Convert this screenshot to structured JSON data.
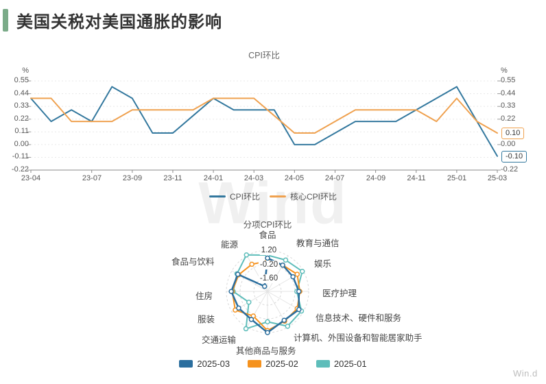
{
  "header": {
    "title": "美国关税对美国通胀的影响",
    "accent_color": "#7bab89"
  },
  "watermark": {
    "large": "Wind",
    "small": "Win.d"
  },
  "line_chart": {
    "title": "CPI环比",
    "unit_left": "%",
    "unit_right": "%",
    "left_ticks": [
      "0.55",
      "0.44",
      "0.33",
      "0.22",
      "0.11",
      "0.00",
      "-0.11",
      "-0.22"
    ],
    "right_ticks": [
      "0.55",
      "0.44",
      "0.33",
      "0.22",
      "0.00",
      "-0.22"
    ],
    "x_ticks": [
      "23-04",
      "23-07",
      "23-09",
      "23-11",
      "24-01",
      "24-03",
      "24-05",
      "24-07",
      "24-09",
      "24-11",
      "25-01",
      "25-03"
    ],
    "end_labels": [
      {
        "text": "0.10",
        "value": 0.1,
        "color": "#efa14f"
      },
      {
        "text": "-0.10",
        "value": -0.1,
        "color": "#33789e"
      }
    ],
    "legend": [
      {
        "label": "CPI环比",
        "color": "#33789e"
      },
      {
        "label": "核心CPI环比",
        "color": "#efa14f"
      }
    ]
  },
  "radar_chart": {
    "title": "分项CPI环比",
    "ring_labels": [
      "1.20",
      "-0.20",
      "-1.60"
    ],
    "legend": [
      {
        "label": "2025-03",
        "color": "#2b6e9e"
      },
      {
        "label": "2025-02",
        "color": "#f5921e"
      },
      {
        "label": "2025-01",
        "color": "#5ebdba"
      }
    ]
  },
  "chart_data": [
    {
      "type": "line",
      "title": "CPI环比",
      "ylabel": "%",
      "ylim": [
        -0.22,
        0.55
      ],
      "y_ticks": [
        0.55,
        0.44,
        0.33,
        0.22,
        0.11,
        0.0,
        -0.11,
        -0.22
      ],
      "grid": true,
      "legend_position": "bottom",
      "x": [
        "2023-04",
        "2023-05",
        "2023-06",
        "2023-07",
        "2023-08",
        "2023-09",
        "2023-10",
        "2023-11",
        "2023-12",
        "2024-01",
        "2024-02",
        "2024-03",
        "2024-04",
        "2024-05",
        "2024-06",
        "2024-07",
        "2024-08",
        "2024-09",
        "2024-10",
        "2024-11",
        "2024-12",
        "2025-01",
        "2025-02",
        "2025-03"
      ],
      "x_tick_labels": [
        "23-04",
        "23-07",
        "23-09",
        "23-11",
        "24-01",
        "24-03",
        "24-05",
        "24-07",
        "24-09",
        "24-11",
        "25-01",
        "25-03"
      ],
      "x_tick_indices": [
        0,
        3,
        5,
        7,
        9,
        11,
        13,
        15,
        17,
        19,
        21,
        23
      ],
      "series": [
        {
          "name": "CPI环比",
          "color": "#33789e",
          "values": [
            0.4,
            0.2,
            0.3,
            0.2,
            0.5,
            0.4,
            0.1,
            0.1,
            0.25,
            0.4,
            0.3,
            0.3,
            0.3,
            0.0,
            0.0,
            0.1,
            0.2,
            0.2,
            0.2,
            0.3,
            0.4,
            0.5,
            0.2,
            -0.1
          ],
          "end_label": "-0.10"
        },
        {
          "name": "核心CPI环比",
          "color": "#efa14f",
          "values": [
            0.4,
            0.4,
            0.2,
            0.2,
            0.2,
            0.3,
            0.3,
            0.3,
            0.3,
            0.4,
            0.4,
            0.4,
            0.25,
            0.1,
            0.1,
            0.2,
            0.3,
            0.3,
            0.3,
            0.3,
            0.2,
            0.4,
            0.2,
            0.1
          ],
          "end_label": "0.10"
        }
      ]
    },
    {
      "type": "radar",
      "title": "分项CPI环比",
      "categories": [
        "食品",
        "教育与通信",
        "娱乐",
        "医疗护理",
        "信息技术、硬件和服务",
        "计算机、外围设备和智能居家助手",
        "其他商品与服务",
        "交通运输",
        "服装",
        "住房",
        "食品与饮料",
        "能源"
      ],
      "radial_range": [
        -3.0,
        1.2
      ],
      "ring_values": [
        1.2,
        -0.2,
        -1.6
      ],
      "legend_position": "bottom",
      "series": [
        {
          "name": "2025-03",
          "color": "#2b6e9e",
          "values": [
            0.4,
            0.1,
            0.0,
            0.2,
            0.7,
            0.4,
            1.2,
            0.3,
            0.4,
            0.7,
            0.5,
            -2.4
          ]
        },
        {
          "name": "2025-02",
          "color": "#f5921e",
          "values": [
            0.1,
            0.1,
            0.5,
            0.3,
            0.5,
            0.5,
            1.0,
            -0.1,
            0.8,
            0.6,
            0.4,
            0.2
          ]
        },
        {
          "name": "2025-01",
          "color": "#5ebdba",
          "values": [
            0.7,
            0.7,
            1.1,
            0.0,
            1.0,
            1.1,
            0.1,
            1.4,
            -0.8,
            0.5,
            0.6,
            1.3
          ]
        }
      ]
    }
  ]
}
